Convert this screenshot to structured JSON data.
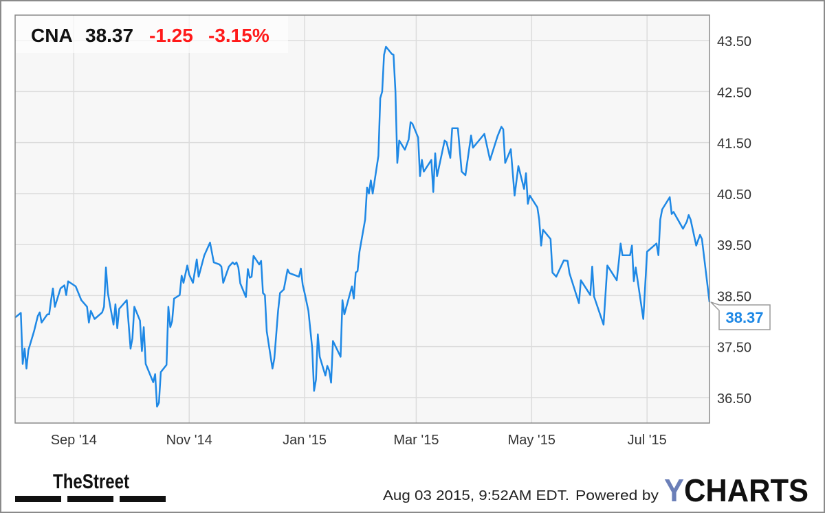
{
  "header": {
    "ticker": "CNA",
    "price": "38.37",
    "change": "-1.25",
    "change_pct": "-3.15%"
  },
  "colors": {
    "line": "#1e88e5",
    "negative": "#ff1a1a",
    "plot_bg": "#f7f7f7",
    "grid": "#dcdcdc",
    "ycharts_y": "#6b7fb8"
  },
  "last_value_label": "38.37",
  "footer": {
    "timestamp": "Aug 03 2015, 9:52AM EDT.",
    "powered_by": "Powered by",
    "brand_logo": "YCHARTS",
    "publisher_logo": "TheStreet"
  },
  "chart_data": {
    "type": "line",
    "title": "",
    "xlabel": "",
    "ylabel": "",
    "xlim": [
      "2014-08-01",
      "2015-08-03"
    ],
    "ylim": [
      36.0,
      44.0
    ],
    "y_axis_side": "right",
    "grid": true,
    "x_ticks": [
      {
        "date": "2014-09-01",
        "label": "Sep '14"
      },
      {
        "date": "2014-11-01",
        "label": "Nov '14"
      },
      {
        "date": "2015-01-01",
        "label": "Jan '15"
      },
      {
        "date": "2015-03-01",
        "label": "Mar '15"
      },
      {
        "date": "2015-05-01",
        "label": "May '15"
      },
      {
        "date": "2015-07-01",
        "label": "Jul '15"
      }
    ],
    "y_ticks": [
      {
        "value": 43.5,
        "label": "43.50"
      },
      {
        "value": 42.5,
        "label": "42.50"
      },
      {
        "value": 41.5,
        "label": "41.50"
      },
      {
        "value": 40.5,
        "label": "40.50"
      },
      {
        "value": 39.5,
        "label": "39.50"
      },
      {
        "value": 38.5,
        "label": "38.50"
      },
      {
        "value": 37.5,
        "label": "37.50"
      },
      {
        "value": 36.5,
        "label": "36.50"
      }
    ],
    "series": [
      {
        "points": [
          [
            "2014-08-01",
            38.07
          ],
          [
            "2014-08-04",
            38.16
          ],
          [
            "2014-08-05",
            37.16
          ],
          [
            "2014-08-06",
            37.46
          ],
          [
            "2014-08-07",
            37.07
          ],
          [
            "2014-08-08",
            37.43
          ],
          [
            "2014-08-11",
            37.8
          ],
          [
            "2014-08-13",
            38.1
          ],
          [
            "2014-08-14",
            38.17
          ],
          [
            "2014-08-15",
            37.97
          ],
          [
            "2014-08-18",
            38.13
          ],
          [
            "2014-08-19",
            38.13
          ],
          [
            "2014-08-20",
            38.41
          ],
          [
            "2014-08-21",
            38.64
          ],
          [
            "2014-08-22",
            38.28
          ],
          [
            "2014-08-25",
            38.64
          ],
          [
            "2014-08-27",
            38.7
          ],
          [
            "2014-08-28",
            38.51
          ],
          [
            "2014-08-29",
            38.78
          ],
          [
            "2014-09-02",
            38.68
          ],
          [
            "2014-09-05",
            38.41
          ],
          [
            "2014-09-08",
            38.28
          ],
          [
            "2014-09-09",
            37.97
          ],
          [
            "2014-09-10",
            38.2
          ],
          [
            "2014-09-12",
            38.04
          ],
          [
            "2014-09-16",
            38.17
          ],
          [
            "2014-09-17",
            38.28
          ],
          [
            "2014-09-18",
            39.05
          ],
          [
            "2014-09-19",
            38.55
          ],
          [
            "2014-09-22",
            37.93
          ],
          [
            "2014-09-23",
            38.33
          ],
          [
            "2014-09-24",
            37.86
          ],
          [
            "2014-09-25",
            38.24
          ],
          [
            "2014-09-29",
            38.41
          ],
          [
            "2014-10-01",
            37.46
          ],
          [
            "2014-10-02",
            37.66
          ],
          [
            "2014-10-03",
            38.28
          ],
          [
            "2014-10-06",
            38.01
          ],
          [
            "2014-10-07",
            37.41
          ],
          [
            "2014-10-08",
            37.88
          ],
          [
            "2014-10-09",
            37.16
          ],
          [
            "2014-10-13",
            36.8
          ],
          [
            "2014-10-14",
            36.96
          ],
          [
            "2014-10-15",
            36.32
          ],
          [
            "2014-10-16",
            36.4
          ],
          [
            "2014-10-17",
            37.0
          ],
          [
            "2014-10-20",
            37.14
          ],
          [
            "2014-10-21",
            38.28
          ],
          [
            "2014-10-22",
            37.88
          ],
          [
            "2014-10-23",
            38.0
          ],
          [
            "2014-10-24",
            38.44
          ],
          [
            "2014-10-27",
            38.51
          ],
          [
            "2014-10-28",
            38.89
          ],
          [
            "2014-10-29",
            38.75
          ],
          [
            "2014-10-31",
            39.09
          ],
          [
            "2014-11-01",
            38.91
          ],
          [
            "2014-11-03",
            38.75
          ],
          [
            "2014-11-05",
            39.21
          ],
          [
            "2014-11-06",
            38.87
          ],
          [
            "2014-11-09",
            39.29
          ],
          [
            "2014-11-12",
            39.54
          ],
          [
            "2014-11-14",
            39.15
          ],
          [
            "2014-11-17",
            39.11
          ],
          [
            "2014-11-18",
            39.07
          ],
          [
            "2014-11-19",
            38.75
          ],
          [
            "2014-11-22",
            39.07
          ],
          [
            "2014-11-24",
            39.15
          ],
          [
            "2014-11-25",
            39.11
          ],
          [
            "2014-11-26",
            39.15
          ],
          [
            "2014-11-27",
            39.05
          ],
          [
            "2014-11-28",
            38.74
          ],
          [
            "2014-12-01",
            38.47
          ],
          [
            "2014-12-02",
            39.02
          ],
          [
            "2014-12-03",
            38.85
          ],
          [
            "2014-12-04",
            38.87
          ],
          [
            "2014-12-05",
            39.28
          ],
          [
            "2014-12-08",
            39.11
          ],
          [
            "2014-12-09",
            39.18
          ],
          [
            "2014-12-10",
            38.55
          ],
          [
            "2014-12-11",
            38.51
          ],
          [
            "2014-12-12",
            37.8
          ],
          [
            "2014-12-15",
            37.07
          ],
          [
            "2014-12-16",
            37.26
          ],
          [
            "2014-12-18",
            38.2
          ],
          [
            "2014-12-19",
            38.55
          ],
          [
            "2014-12-21",
            38.62
          ],
          [
            "2014-12-23",
            39.01
          ],
          [
            "2014-12-24",
            38.94
          ],
          [
            "2014-12-29",
            38.87
          ],
          [
            "2014-12-30",
            39.03
          ],
          [
            "2014-12-31",
            38.71
          ],
          [
            "2015-01-01",
            38.55
          ],
          [
            "2015-01-03",
            38.2
          ],
          [
            "2015-01-05",
            37.47
          ],
          [
            "2015-01-06",
            36.63
          ],
          [
            "2015-01-07",
            36.85
          ],
          [
            "2015-01-08",
            37.74
          ],
          [
            "2015-01-09",
            37.3
          ],
          [
            "2015-01-12",
            36.93
          ],
          [
            "2015-01-13",
            37.12
          ],
          [
            "2015-01-14",
            37.03
          ],
          [
            "2015-01-15",
            36.79
          ],
          [
            "2015-01-16",
            37.61
          ],
          [
            "2015-01-20",
            37.3
          ],
          [
            "2015-01-21",
            38.41
          ],
          [
            "2015-01-22",
            38.13
          ],
          [
            "2015-01-26",
            38.68
          ],
          [
            "2015-01-27",
            38.44
          ],
          [
            "2015-01-28",
            38.95
          ],
          [
            "2015-01-29",
            38.98
          ],
          [
            "2015-01-30",
            39.36
          ],
          [
            "2015-02-02",
            39.99
          ],
          [
            "2015-02-03",
            40.62
          ],
          [
            "2015-02-04",
            40.5
          ],
          [
            "2015-02-05",
            40.76
          ],
          [
            "2015-02-06",
            40.5
          ],
          [
            "2015-02-09",
            41.24
          ],
          [
            "2015-02-10",
            42.37
          ],
          [
            "2015-02-11",
            42.5
          ],
          [
            "2015-02-12",
            43.22
          ],
          [
            "2015-02-13",
            43.38
          ],
          [
            "2015-02-16",
            43.24
          ],
          [
            "2015-02-17",
            43.22
          ],
          [
            "2015-02-18",
            42.5
          ],
          [
            "2015-02-19",
            41.1
          ],
          [
            "2015-02-20",
            41.54
          ],
          [
            "2015-02-23",
            41.36
          ],
          [
            "2015-02-25",
            41.56
          ],
          [
            "2015-02-26",
            41.9
          ],
          [
            "2015-02-27",
            41.87
          ],
          [
            "2015-03-02",
            41.6
          ],
          [
            "2015-03-03",
            40.84
          ],
          [
            "2015-03-04",
            41.16
          ],
          [
            "2015-03-05",
            40.93
          ],
          [
            "2015-03-09",
            41.16
          ],
          [
            "2015-03-10",
            40.53
          ],
          [
            "2015-03-11",
            41.29
          ],
          [
            "2015-03-12",
            40.84
          ],
          [
            "2015-03-16",
            41.54
          ],
          [
            "2015-03-17",
            41.51
          ],
          [
            "2015-03-19",
            41.2
          ],
          [
            "2015-03-20",
            41.78
          ],
          [
            "2015-03-23",
            41.78
          ],
          [
            "2015-03-25",
            40.93
          ],
          [
            "2015-03-27",
            40.86
          ],
          [
            "2015-03-30",
            41.64
          ],
          [
            "2015-03-31",
            41.4
          ],
          [
            "2015-04-06",
            41.67
          ],
          [
            "2015-04-09",
            41.16
          ],
          [
            "2015-04-13",
            41.63
          ],
          [
            "2015-04-15",
            41.81
          ],
          [
            "2015-04-16",
            41.76
          ],
          [
            "2015-04-17",
            41.1
          ],
          [
            "2015-04-20",
            41.37
          ],
          [
            "2015-04-22",
            40.46
          ],
          [
            "2015-04-24",
            41.04
          ],
          [
            "2015-04-27",
            40.59
          ],
          [
            "2015-04-28",
            40.9
          ],
          [
            "2015-04-29",
            40.3
          ],
          [
            "2015-04-30",
            40.46
          ],
          [
            "2015-05-04",
            40.23
          ],
          [
            "2015-05-05",
            39.99
          ],
          [
            "2015-05-06",
            39.48
          ],
          [
            "2015-05-07",
            39.79
          ],
          [
            "2015-05-11",
            39.61
          ],
          [
            "2015-05-12",
            38.95
          ],
          [
            "2015-05-14",
            38.87
          ],
          [
            "2015-05-18",
            39.19
          ],
          [
            "2015-05-20",
            39.18
          ],
          [
            "2015-05-21",
            38.94
          ],
          [
            "2015-05-26",
            38.35
          ],
          [
            "2015-05-27",
            38.8
          ],
          [
            "2015-06-01",
            38.51
          ],
          [
            "2015-06-02",
            39.07
          ],
          [
            "2015-06-03",
            38.48
          ],
          [
            "2015-06-08",
            37.93
          ],
          [
            "2015-06-10",
            39.09
          ],
          [
            "2015-06-15",
            38.8
          ],
          [
            "2015-06-16",
            39.14
          ],
          [
            "2015-06-17",
            39.52
          ],
          [
            "2015-06-18",
            39.29
          ],
          [
            "2015-06-22",
            39.29
          ],
          [
            "2015-06-23",
            39.48
          ],
          [
            "2015-06-24",
            38.78
          ],
          [
            "2015-06-25",
            39.05
          ],
          [
            "2015-06-29",
            38.04
          ],
          [
            "2015-07-01",
            39.36
          ],
          [
            "2015-07-06",
            39.52
          ],
          [
            "2015-07-07",
            39.29
          ],
          [
            "2015-07-08",
            39.99
          ],
          [
            "2015-07-09",
            40.19
          ],
          [
            "2015-07-13",
            40.43
          ],
          [
            "2015-07-14",
            40.1
          ],
          [
            "2015-07-15",
            40.14
          ],
          [
            "2015-07-20",
            39.81
          ],
          [
            "2015-07-22",
            39.95
          ],
          [
            "2015-07-23",
            40.08
          ],
          [
            "2015-07-24",
            39.99
          ],
          [
            "2015-07-27",
            39.48
          ],
          [
            "2015-07-29",
            39.69
          ],
          [
            "2015-07-30",
            39.61
          ],
          [
            "2015-08-03",
            38.37
          ]
        ]
      }
    ]
  }
}
